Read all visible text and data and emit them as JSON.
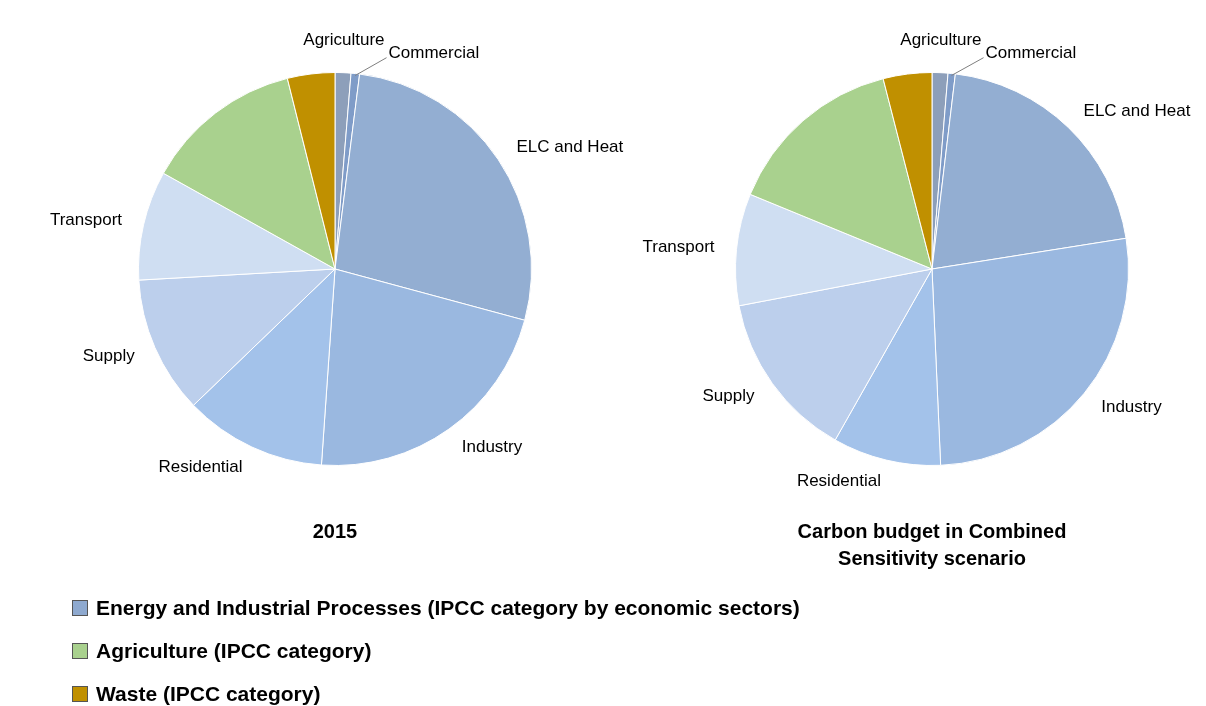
{
  "chart_data": [
    {
      "type": "pie",
      "title": "2015",
      "categories": [
        "Agriculture",
        "Commercial",
        "ELC and Heat",
        "Industry",
        "Residential",
        "Supply",
        "Transport",
        null,
        null
      ],
      "values": [
        1.3,
        0.7,
        27.2,
        21.9,
        11.7,
        11.3,
        9.0,
        13.0,
        3.9
      ],
      "colors": [
        "#8d9fba",
        "#7f9cc8",
        "#93aed2",
        "#9ab8e0",
        "#a3c2ea",
        "#bccfec",
        "#cfdef2",
        "#a9d18e",
        "#c09000"
      ]
    },
    {
      "type": "pie",
      "title": "Carbon budget in Combined Sensitivity scenario",
      "categories": [
        "Agriculture",
        "Commercial",
        "ELC and Heat",
        "Industry",
        "Residential",
        "Supply",
        "Transport",
        null,
        null
      ],
      "values": [
        1.3,
        0.6,
        20.6,
        26.8,
        8.9,
        13.8,
        9.2,
        14.8,
        4.0
      ],
      "colors": [
        "#8d9fba",
        "#7f9cc8",
        "#93aed2",
        "#9ab8e0",
        "#a3c2ea",
        "#bccfec",
        "#cfdef2",
        "#a9d18e",
        "#c09000"
      ]
    },
    {
      "type": "other",
      "categories": [
        "Energy and Industrial Processes (IPCC category by economic sectors)",
        "Agriculture (IPCC category)",
        "Waste (IPCC category)"
      ],
      "colors": [
        "#8ea9cf",
        "#a9d18e",
        "#c09000"
      ]
    }
  ]
}
